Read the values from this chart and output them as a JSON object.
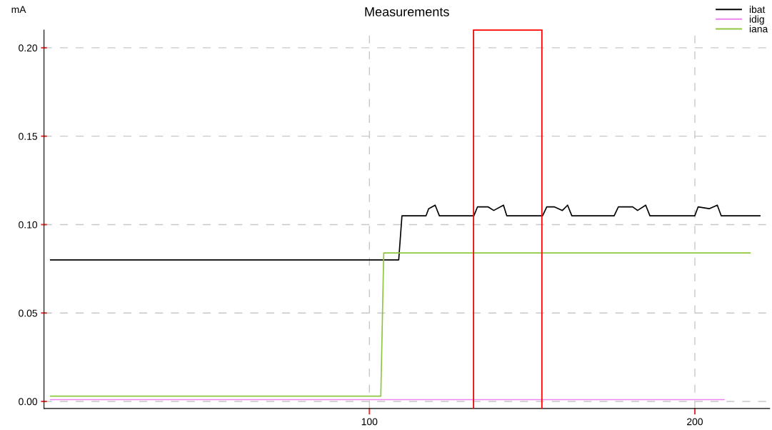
{
  "chart_data": {
    "type": "line",
    "title": "Measurements",
    "ylabel": "mA",
    "xlim": [
      0,
      223
    ],
    "xticks": [
      100,
      200
    ],
    "ylim": [
      -0.004,
      0.21
    ],
    "yticks": [
      {
        "value": 0,
        "label": "0.00"
      },
      {
        "value": 0.05,
        "label": "0.05"
      },
      {
        "value": 0.1,
        "label": "0.10"
      },
      {
        "value": 0.15,
        "label": "0.15"
      },
      {
        "value": 0.2,
        "label": "0.20"
      }
    ],
    "grid": true,
    "legend": "top right",
    "marker": "none",
    "line_style": "solid",
    "series": [
      {
        "name": "ibat",
        "color": "#000000",
        "x": [
          2,
          109,
          110,
          117.4,
          118.2,
          120.2,
          121.5,
          132.1,
          133.2,
          136.5,
          138.2,
          141.2,
          142.2,
          153.2,
          154.5,
          156.9,
          159.3,
          160.9,
          162.2,
          175.2,
          176.5,
          180.9,
          182.4,
          184.9,
          186.2,
          200.0,
          201.0,
          204.4,
          206.9,
          208.1,
          220
        ],
        "values": [
          0.08,
          0.08,
          0.105,
          0.105,
          0.109,
          0.111,
          0.105,
          0.105,
          0.11,
          0.11,
          0.108,
          0.111,
          0.105,
          0.105,
          0.11,
          0.11,
          0.108,
          0.111,
          0.105,
          0.105,
          0.11,
          0.11,
          0.108,
          0.111,
          0.105,
          0.105,
          0.11,
          0.109,
          0.111,
          0.105,
          0.105
        ]
      },
      {
        "name": "idig",
        "color": "#ee82ee",
        "x": [
          2,
          209
        ],
        "values": [
          0.001,
          0.001
        ]
      },
      {
        "name": "iana",
        "color": "#8dc63f",
        "x": [
          2,
          103.5,
          104.4,
          217
        ],
        "values": [
          0.003,
          0.003,
          0.084,
          0.084
        ]
      }
    ],
    "ref_lines": [
      {
        "axis": "x",
        "value": 132,
        "color": "#ff0000"
      },
      {
        "axis": "x",
        "value": 153,
        "color": "#ff0000"
      }
    ]
  }
}
